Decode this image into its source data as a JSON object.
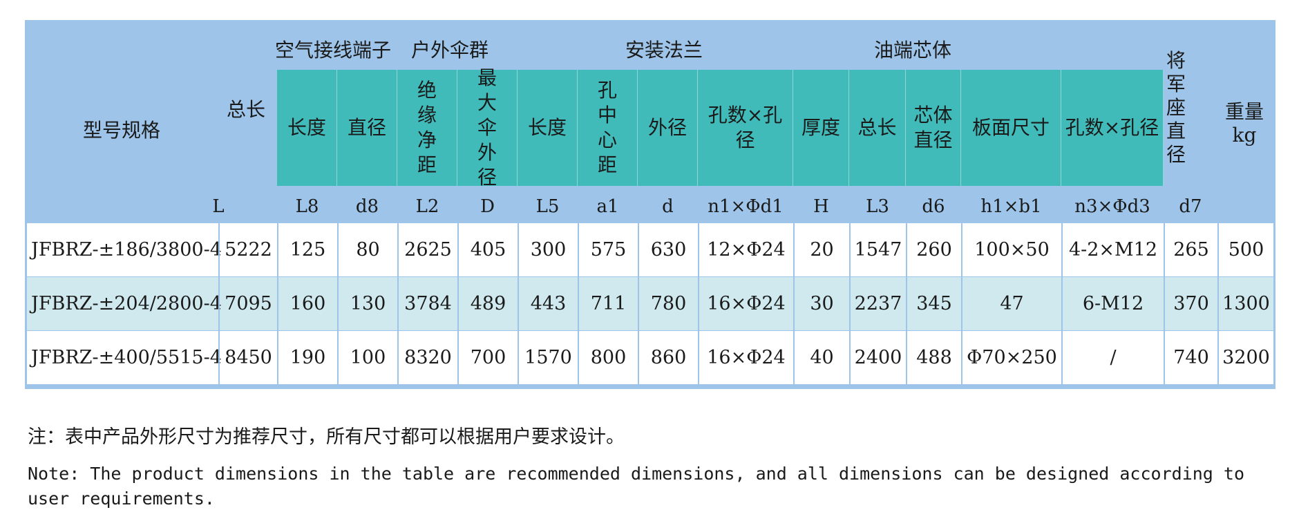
{
  "groups": {
    "air_terminal": "空气接线端子",
    "shed": "户外伞群",
    "flange": "安装法兰",
    "core": "油端芯体"
  },
  "headers": {
    "model": "型号规格",
    "total_length": "总长",
    "l8": "长度",
    "d8": "直径",
    "l2": "绝缘净距",
    "D": "最大伞外径",
    "l5": "长度",
    "a1": "孔中心距",
    "d": "外径",
    "n1": "孔数×孔径",
    "H": "厚度",
    "l3": "总长",
    "d6": "芯体直径",
    "h1b1": "板面尺寸",
    "n3": "孔数×孔径",
    "d7": "将军座直径",
    "weight": "重量kg"
  },
  "symbols": [
    "L",
    "L8",
    "d8",
    "L2",
    "D",
    "L5",
    "a1",
    "d",
    "n1×Φd1",
    "H",
    "L3",
    "d6",
    "h1×b1",
    "n3×Φd3",
    "d7"
  ],
  "rows": [
    [
      "JFBRZ-±186/3800-4",
      "5222",
      "125",
      "80",
      "2625",
      "405",
      "300",
      "575",
      "630",
      "12×Φ24",
      "20",
      "1547",
      "260",
      "100×50",
      "4-2×M12",
      "265",
      "500"
    ],
    [
      "JFBRZ-±204/2800-4",
      "7095",
      "160",
      "130",
      "3784",
      "489",
      "443",
      "711",
      "780",
      "16×Φ24",
      "30",
      "2237",
      "345",
      "47",
      "6-M12",
      "370",
      "1300"
    ],
    [
      "JFBRZ-±400/5515-4",
      "8450",
      "190",
      "100",
      "8320",
      "700",
      "1570",
      "800",
      "860",
      "16×Φ24",
      "40",
      "2400",
      "488",
      "Φ70×250",
      "/",
      "740",
      "3200"
    ]
  ],
  "colors": {
    "header_bg": "#9ec5e9",
    "teal": "#40bbb9",
    "row_white": "#ffffff",
    "row_alt": "#cfe9ee",
    "grid": "#9ec5e9"
  },
  "notes": {
    "cn": "注：表中产品外形尺寸为推荐尺寸，所有尺寸都可以根据用户要求设计。",
    "en": "Note: The product dimensions in the table are recommended dimensions, and all dimensions can be designed according to user requirements."
  }
}
